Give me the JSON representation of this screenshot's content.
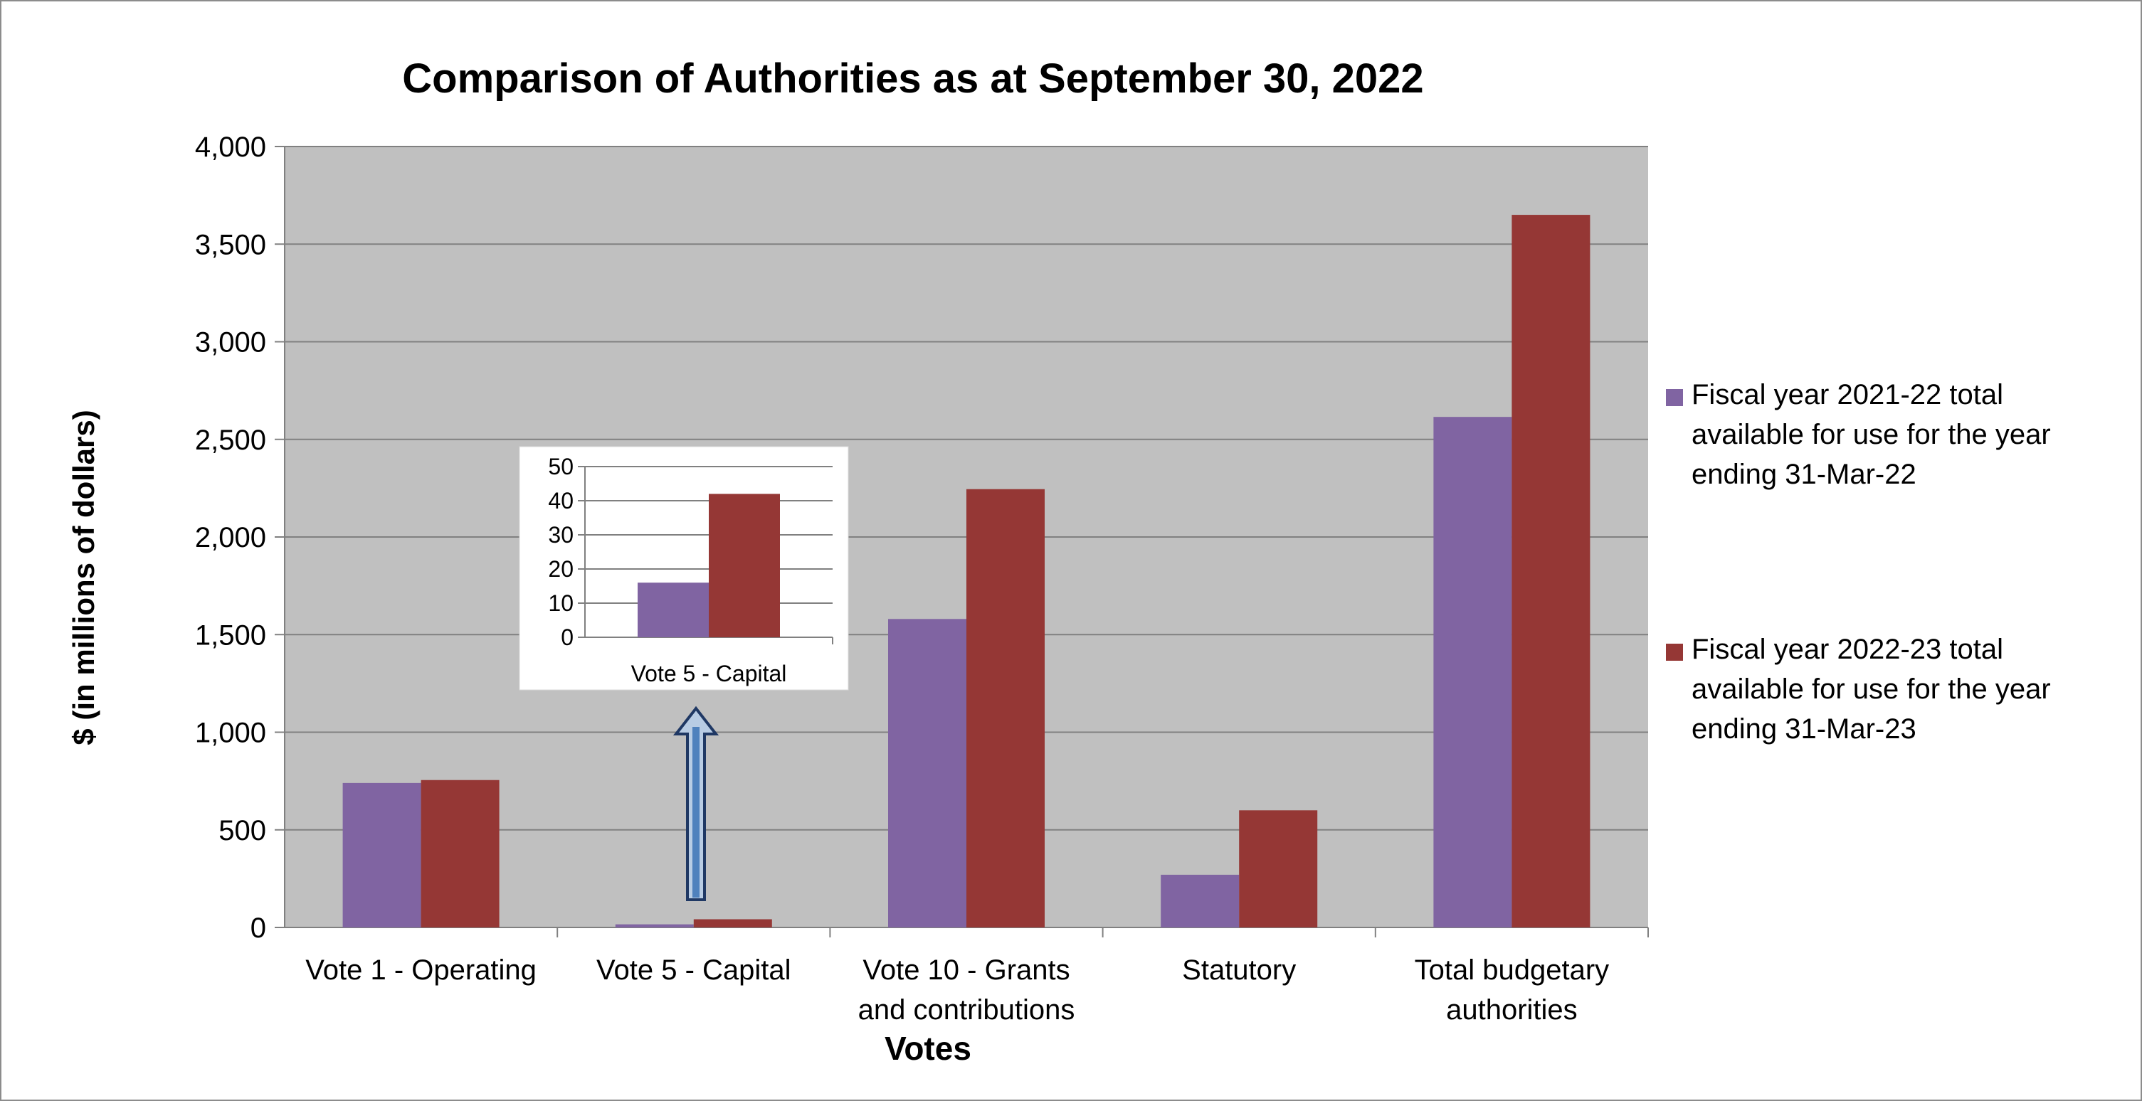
{
  "chart_data": {
    "type": "bar",
    "title": "Comparison of Authorities as at September 30, 2022",
    "xlabel": "Votes",
    "ylabel": "$ (in millions of dollars)",
    "ylim": [
      0,
      4000
    ],
    "yticks": [
      0,
      500,
      1000,
      1500,
      2000,
      2500,
      3000,
      3500,
      4000
    ],
    "ytick_labels": [
      "0",
      "500",
      "1,000",
      "1,500",
      "2,000",
      "2,500",
      "3,000",
      "3,500",
      "4,000"
    ],
    "grid": true,
    "legend_position": "right",
    "categories": [
      [
        "Vote 1 - Operating"
      ],
      [
        "Vote 5 - Capital"
      ],
      [
        "Vote 10 - Grants",
        "and contributions"
      ],
      [
        "Statutory"
      ],
      [
        "Total budgetary",
        "authorities"
      ]
    ],
    "series": [
      {
        "name": [
          "Fiscal year 2021-22 total",
          "available for use for the year",
          "ending 31-Mar-22"
        ],
        "color": "#8064a2",
        "values": [
          740,
          16,
          1580,
          270,
          2615
        ]
      },
      {
        "name": [
          "Fiscal year 2022-23 total",
          "available for use for the year",
          "ending 31-Mar-23"
        ],
        "color": "#953735",
        "values": [
          755,
          42,
          2245,
          600,
          3650
        ]
      }
    ],
    "inset": {
      "category": "Vote 5 - Capital",
      "ylim": [
        0,
        50
      ],
      "yticks": [
        0,
        10,
        20,
        30,
        40,
        50
      ],
      "ytick_labels": [
        "0",
        "10",
        "20",
        "30",
        "40",
        "50"
      ],
      "values": [
        16,
        42
      ]
    },
    "plot_background": "#c0c0c0",
    "arrow_color": "#4f81bd"
  }
}
